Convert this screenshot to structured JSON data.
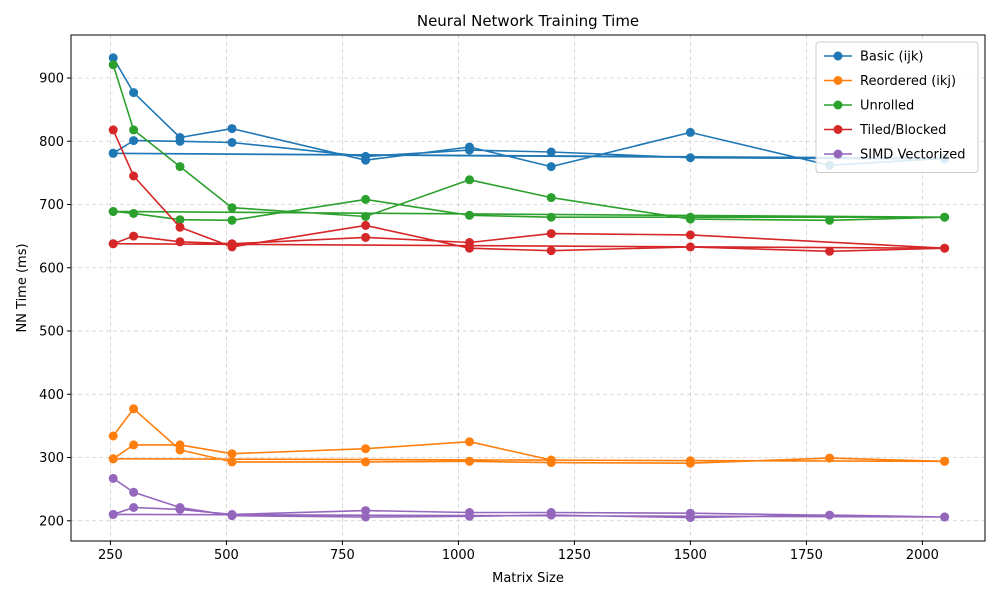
{
  "chart_data": {
    "type": "line",
    "title": "Neural Network Training Time",
    "xlabel": "Matrix Size",
    "ylabel": "NN Time (ms)",
    "xlim": [
      165,
      2135
    ],
    "ylim": [
      168,
      968
    ],
    "xticks": [
      250,
      500,
      750,
      1000,
      1250,
      1500,
      1750,
      2000
    ],
    "yticks": [
      200,
      300,
      400,
      500,
      600,
      700,
      800,
      900
    ],
    "grid": true,
    "legend_position": "top-right",
    "series": [
      {
        "name": "Basic (ijk)",
        "color": "#1f77b4",
        "points": [
          [
            256,
            932
          ],
          [
            300,
            877
          ],
          [
            400,
            806
          ],
          [
            512,
            820
          ],
          [
            800,
            770
          ],
          [
            1024,
            791
          ],
          [
            1200,
            760
          ],
          [
            1500,
            814
          ],
          [
            1800,
            762
          ],
          [
            2048,
            773
          ],
          [
            256,
            781
          ],
          [
            300,
            801
          ],
          [
            400,
            800
          ],
          [
            512,
            798
          ],
          [
            800,
            776
          ],
          [
            1024,
            786
          ],
          [
            1200,
            783
          ],
          [
            1500,
            774
          ],
          [
            2048,
            772
          ],
          [
            256,
            781
          ]
        ]
      },
      {
        "name": "Reordered (ikj)",
        "color": "#ff7f0e",
        "points": [
          [
            256,
            334
          ],
          [
            300,
            377
          ],
          [
            400,
            312
          ],
          [
            512,
            293
          ],
          [
            800,
            293
          ],
          [
            1024,
            294
          ],
          [
            1200,
            292
          ],
          [
            1500,
            291
          ],
          [
            1800,
            299
          ],
          [
            2048,
            294
          ],
          [
            256,
            298
          ],
          [
            300,
            320
          ],
          [
            400,
            320
          ],
          [
            512,
            306
          ],
          [
            800,
            314
          ],
          [
            1024,
            325
          ],
          [
            1200,
            296
          ],
          [
            1500,
            295
          ],
          [
            2048,
            294
          ],
          [
            256,
            298
          ]
        ]
      },
      {
        "name": "Unrolled",
        "color": "#2ca02c",
        "points": [
          [
            256,
            921
          ],
          [
            300,
            818
          ],
          [
            400,
            760
          ],
          [
            512,
            695
          ],
          [
            800,
            681
          ],
          [
            1024,
            739
          ],
          [
            1200,
            711
          ],
          [
            1500,
            677
          ],
          [
            1800,
            675
          ],
          [
            2048,
            680
          ],
          [
            256,
            689
          ],
          [
            300,
            686
          ],
          [
            400,
            676
          ],
          [
            512,
            675
          ],
          [
            800,
            708
          ],
          [
            1024,
            683
          ],
          [
            1200,
            680
          ],
          [
            1500,
            680
          ],
          [
            2048,
            680
          ],
          [
            256,
            689
          ]
        ]
      },
      {
        "name": "Tiled/Blocked",
        "color": "#d62728",
        "points": [
          [
            256,
            818
          ],
          [
            300,
            745
          ],
          [
            400,
            664
          ],
          [
            512,
            633
          ],
          [
            800,
            667
          ],
          [
            1024,
            631
          ],
          [
            1200,
            627
          ],
          [
            1500,
            633
          ],
          [
            1800,
            626
          ],
          [
            2048,
            631
          ],
          [
            256,
            638
          ],
          [
            300,
            650
          ],
          [
            400,
            641
          ],
          [
            512,
            638
          ],
          [
            800,
            648
          ],
          [
            1024,
            640
          ],
          [
            1200,
            654
          ],
          [
            1500,
            652
          ],
          [
            2048,
            631
          ],
          [
            256,
            638
          ]
        ]
      },
      {
        "name": "SIMD Vectorized",
        "color": "#9467bd",
        "points": [
          [
            256,
            267
          ],
          [
            300,
            245
          ],
          [
            400,
            221
          ],
          [
            512,
            208
          ],
          [
            800,
            206
          ],
          [
            1024,
            207
          ],
          [
            1200,
            209
          ],
          [
            1500,
            205
          ],
          [
            1800,
            209
          ],
          [
            2048,
            206
          ],
          [
            256,
            210
          ],
          [
            300,
            221
          ],
          [
            400,
            218
          ],
          [
            512,
            210
          ],
          [
            800,
            216
          ],
          [
            1024,
            213
          ],
          [
            1200,
            213
          ],
          [
            1500,
            212
          ],
          [
            2048,
            206
          ],
          [
            256,
            210
          ]
        ]
      }
    ]
  }
}
